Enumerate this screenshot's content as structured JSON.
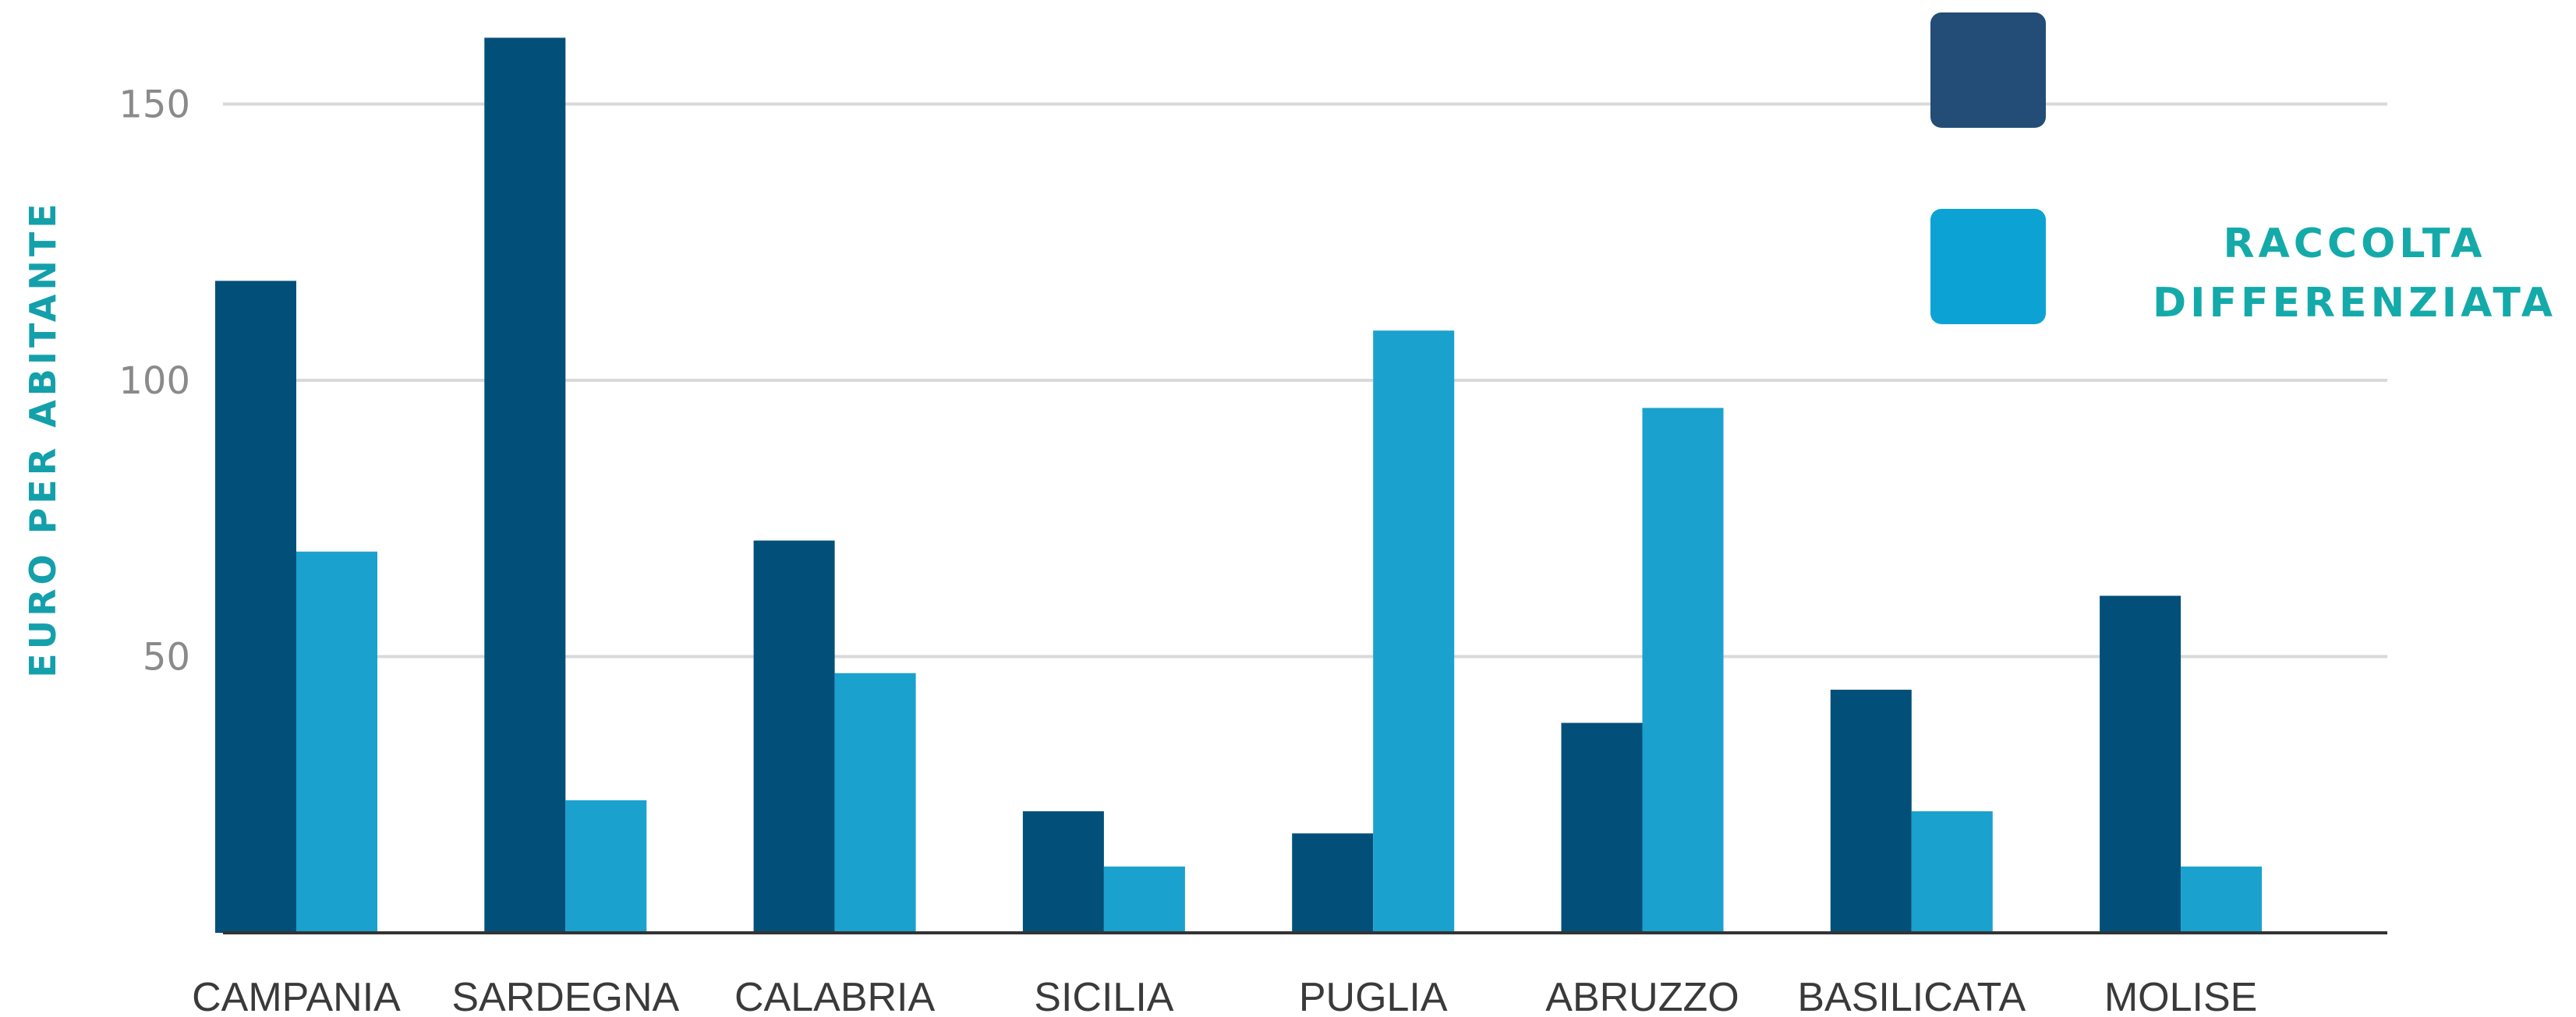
{
  "chart_data": {
    "type": "bar",
    "categories": [
      "CAMPANIA",
      "SARDEGNA",
      "CALABRIA",
      "SICILIA",
      "PUGLIA",
      "ABRUZZO",
      "BASILICATA",
      "MOLISE"
    ],
    "series": [
      {
        "name": "",
        "color": "#02507a",
        "legend_color": "#234d76",
        "values": [
          118,
          162,
          71,
          22,
          18,
          38,
          44,
          61
        ]
      },
      {
        "name": "RACCOLTA\nDIFFERENZIATA",
        "color": "#1ba1ce",
        "legend_color": "#0ca3d4",
        "values": [
          69,
          24,
          47,
          12,
          109,
          95,
          22,
          12
        ]
      }
    ],
    "ylabel": "EURO PER ABITANTE",
    "ylim": [
      0,
      150
    ],
    "yticks": [
      50,
      100,
      150
    ],
    "grid": true,
    "legend_position": "top-right",
    "colors": {
      "axis_title": "#14a0ab",
      "legend_text": "#14aaa9",
      "gridline": "#d9d9d9",
      "baseline": "#333333"
    }
  }
}
